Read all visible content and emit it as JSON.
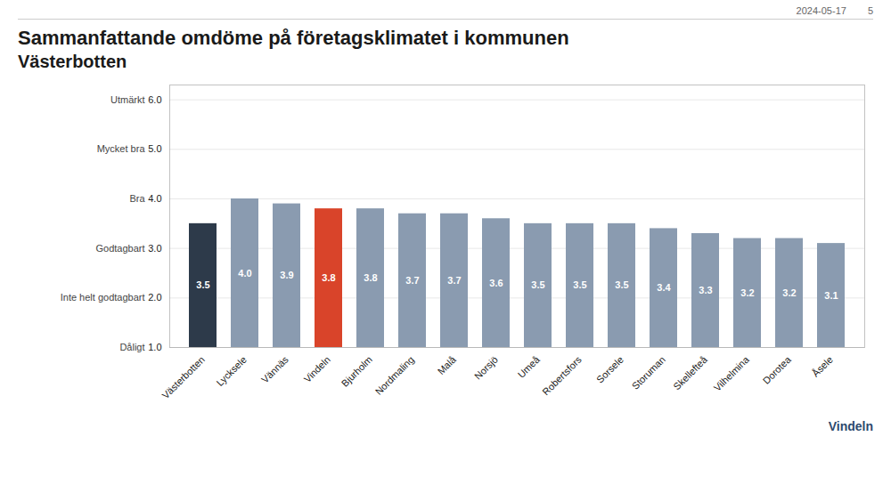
{
  "chart_data": {
    "type": "bar",
    "title": "Sammanfattande omdöme på företagsklimatet i kommunen",
    "subtitle": "Västerbotten",
    "header": [
      "2024-05-17",
      "5"
    ],
    "footer": "Vindeln",
    "categories": [
      "Västerbotten",
      "Lycksele",
      "Vännäs",
      "Vindeln",
      "Bjurholm",
      "Nordmaling",
      "Malå",
      "Norsjö",
      "Umeå",
      "Robertsfors",
      "Sorsele",
      "Storuman",
      "Skellefteå",
      "Vilhelmina",
      "Dorotea",
      "Åsele"
    ],
    "values": [
      3.5,
      4.0,
      3.9,
      3.8,
      3.8,
      3.7,
      3.7,
      3.6,
      3.5,
      3.5,
      3.5,
      3.4,
      3.3,
      3.2,
      3.2,
      3.1
    ],
    "value_labels": [
      "3.5",
      "4.0",
      "3.9",
      "3.8",
      "3.8",
      "3.7",
      "3.7",
      "3.6",
      "3.5",
      "3.5",
      "3.5",
      "3.4",
      "3.3",
      "3.2",
      "3.2",
      "3.1"
    ],
    "data_labels": true,
    "colors": [
      "#2d3a4a",
      "#8a9bb0",
      "#8a9bb0",
      "#d9442a",
      "#8a9bb0",
      "#8a9bb0",
      "#8a9bb0",
      "#8a9bb0",
      "#8a9bb0",
      "#8a9bb0",
      "#8a9bb0",
      "#8a9bb0",
      "#8a9bb0",
      "#8a9bb0",
      "#8a9bb0",
      "#8a9bb0"
    ],
    "ylim": [
      1,
      6.3
    ],
    "yticks": [
      1,
      2,
      3,
      4,
      5,
      6
    ],
    "annotations": [
      {
        "y": 1,
        "text": "Dåligt"
      },
      {
        "y": 2,
        "text": "Inte helt godtagbart"
      },
      {
        "y": 3,
        "text": "Godtagbart"
      },
      {
        "y": 4,
        "text": "Bra"
      },
      {
        "y": 5,
        "text": "Mycket bra"
      },
      {
        "y": 6,
        "text": "Utmärkt"
      }
    ],
    "grid": true
  }
}
